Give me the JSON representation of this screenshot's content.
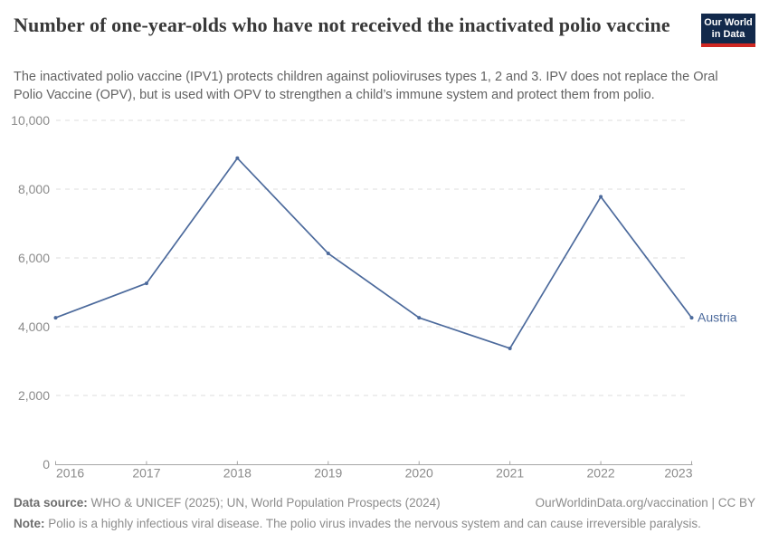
{
  "header": {
    "title": "Number of one-year-olds who have not received the inactivated polio vaccine",
    "subtitle": "The inactivated polio vaccine (IPV1) protects children against polioviruses types 1, 2 and 3. IPV does not replace the Oral Polio Vaccine (OPV), but is used with OPV to strengthen a child’s immune system and protect them from polio."
  },
  "logo": {
    "line1": "Our World",
    "line2": "in Data"
  },
  "chart_data": {
    "type": "line",
    "title": "Number of one-year-olds who have not received the inactivated polio vaccine",
    "x": [
      2016,
      2017,
      2018,
      2019,
      2020,
      2021,
      2022,
      2023
    ],
    "xtick_labels": [
      "2016",
      "2017",
      "2018",
      "2019",
      "2020",
      "2021",
      "2022",
      "2023"
    ],
    "series": [
      {
        "name": "Austria",
        "values": [
          4260,
          5260,
          8900,
          6130,
          4260,
          3370,
          7780,
          4260
        ]
      }
    ],
    "ylim": [
      0,
      10000
    ],
    "yticks": [
      0,
      2000,
      4000,
      6000,
      8000,
      10000
    ],
    "ytick_labels": [
      "0",
      "2,000",
      "4,000",
      "6,000",
      "8,000",
      "10,000"
    ],
    "xlabel": "",
    "ylabel": "",
    "grid": "horizontal-dashed",
    "legend_position": "line-end-label"
  },
  "footer": {
    "data_source_label": "Data source:",
    "data_source_text": "WHO & UNICEF (2025); UN, World Population Prospects (2024)",
    "link_text": "OurWorldinData.org/vaccination | CC BY",
    "note_label": "Note:",
    "note_text": "Polio is a highly infectious viral disease. The polio virus invades the nervous system and can cause irreversible paralysis."
  },
  "colors": {
    "series": "#4C6A9C",
    "axis_label": "#8b8b8b",
    "gridline": "#dedede",
    "axis_line": "#a5a5a5",
    "title": "#383838",
    "subtitle": "#636363",
    "footer": "#8c8c8c",
    "footer_bold": "#6d6d6d",
    "logo_bg": "#12294b",
    "logo_stripe": "#cf2722"
  }
}
